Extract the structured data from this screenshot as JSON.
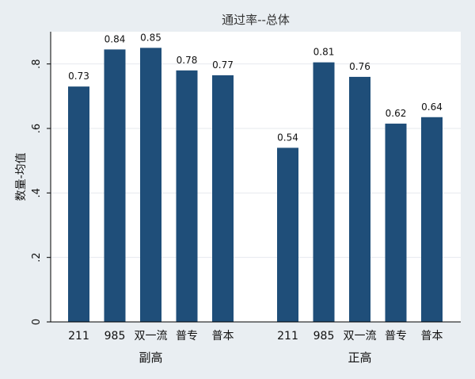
{
  "chart_data": {
    "type": "bar",
    "title": "通过率--总体",
    "ylabel": "数量-均值",
    "ylim": [
      0,
      0.9
    ],
    "yticks": [
      {
        "value": 0,
        "label": "0"
      },
      {
        "value": 0.2,
        "label": ".2"
      },
      {
        "value": 0.4,
        "label": ".4"
      },
      {
        "value": 0.6,
        "label": ".6"
      },
      {
        "value": 0.8,
        "label": ".8"
      }
    ],
    "grid": true,
    "groups": [
      {
        "name": "副高",
        "categories": [
          "211",
          "985",
          "双一流",
          "普专",
          "普本"
        ],
        "values": [
          0.73,
          0.845,
          0.85,
          0.78,
          0.765
        ],
        "labels": [
          "0.73",
          "0.84",
          "0.85",
          "0.78",
          "0.77"
        ]
      },
      {
        "name": "正高",
        "categories": [
          "211",
          "985",
          "双一流",
          "普专",
          "普本"
        ],
        "values": [
          0.54,
          0.805,
          0.76,
          0.615,
          0.635
        ],
        "labels": [
          "0.54",
          "0.81",
          "0.76",
          "0.62",
          "0.64"
        ]
      }
    ],
    "bar_color": "#1f4e79"
  }
}
